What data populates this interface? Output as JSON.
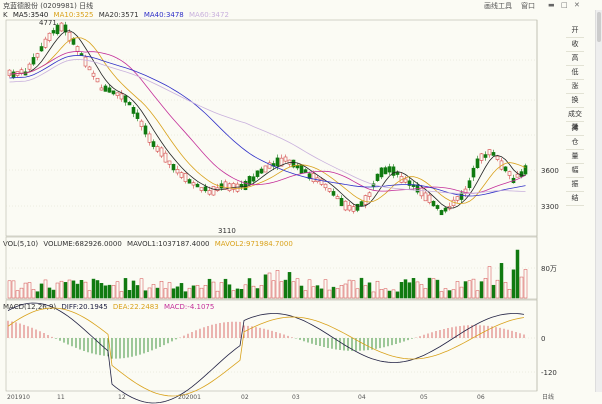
{
  "window": {
    "title": "克蓝德股份 (0209981) 日线",
    "buttons": {
      "quote": "画线工具",
      "minimize": "窗口",
      "close": "关闭"
    }
  },
  "main_indicator": {
    "label": "K",
    "ma5": "MA5:3540",
    "ma10": "MA10:3525",
    "ma20": "MA20:3571",
    "ma40": "MA40:3478",
    "ma60": "MA60:3472"
  },
  "volume_indicator": {
    "label": "VOL(5,10)",
    "volume": "VOLUME:682926.0000",
    "mavol1": "MAVOL1:1037187.4000",
    "mavol2": "MAVOL2:971984.7000"
  },
  "macd_indicator": {
    "label": "MACD(12,26,9)",
    "diff": "DIFF:20.1945",
    "dea": "DEA:22.2483",
    "macd": "MACD:-4.1075"
  },
  "price_axis": {
    "high": "3600",
    "low": "3300"
  },
  "vol_axis": {
    "unit": "80万"
  },
  "macd_axis": {
    "zero": "0",
    "neg": "-120"
  },
  "annotations": {
    "high": "4771",
    "low": "3110"
  },
  "x_axis": {
    "labels": [
      "201910",
      "11",
      "12",
      "202001",
      "02",
      "03",
      "04",
      "05",
      "06"
    ],
    "period": "日线"
  },
  "sidebar": [
    "开",
    "收",
    "高",
    "低",
    "涨",
    "换",
    "成交量",
    "持",
    "仓",
    "量",
    "幅",
    "振",
    "结"
  ],
  "colors": {
    "up": "#d44a4a",
    "down": "#107a10",
    "ma5": "#222222",
    "ma10": "#d9a21c",
    "ma20": "#c4309a",
    "ma40": "#3030c8",
    "ma60": "#c9b1dd",
    "dea": "#d9a21c",
    "diff": "#222244"
  }
}
